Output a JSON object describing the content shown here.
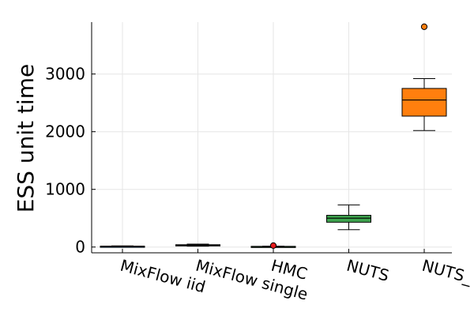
{
  "chart_data": {
    "type": "box",
    "title": "",
    "xlabel": "",
    "ylabel": "ESS unit time",
    "ylim": [
      -100,
      3900
    ],
    "yticks": [
      0,
      1000,
      2000,
      3000
    ],
    "grid": true,
    "legend": "none",
    "categories": [
      "MixFlow iid",
      "MixFlow single",
      "HMC",
      "NUTS",
      "NUTS_"
    ],
    "boxes": [
      {
        "category": "MixFlow iid",
        "whisker_low": 5,
        "q1": 10,
        "median": 12,
        "q3": 15,
        "whisker_high": 20,
        "outliers": [],
        "color": "#009AFA"
      },
      {
        "category": "MixFlow single",
        "whisker_low": 15,
        "q1": 25,
        "median": 32,
        "q3": 40,
        "whisker_high": 50,
        "outliers": [],
        "color": "#E36F47"
      },
      {
        "category": "HMC",
        "whisker_low": 2,
        "q1": 5,
        "median": 8,
        "q3": 12,
        "whisker_high": 15,
        "outliers": [
          25
        ],
        "color": "#3EA44E"
      },
      {
        "category": "NUTS",
        "whisker_low": 300,
        "q1": 430,
        "median": 500,
        "q3": 550,
        "whisker_high": 730,
        "outliers": [],
        "color": "#3EA44E"
      },
      {
        "category": "NUTS_",
        "whisker_low": 2020,
        "q1": 2270,
        "median": 2550,
        "q3": 2750,
        "whisker_high": 2920,
        "outliers": [
          3820
        ],
        "color": "#FF7F0E"
      }
    ]
  }
}
